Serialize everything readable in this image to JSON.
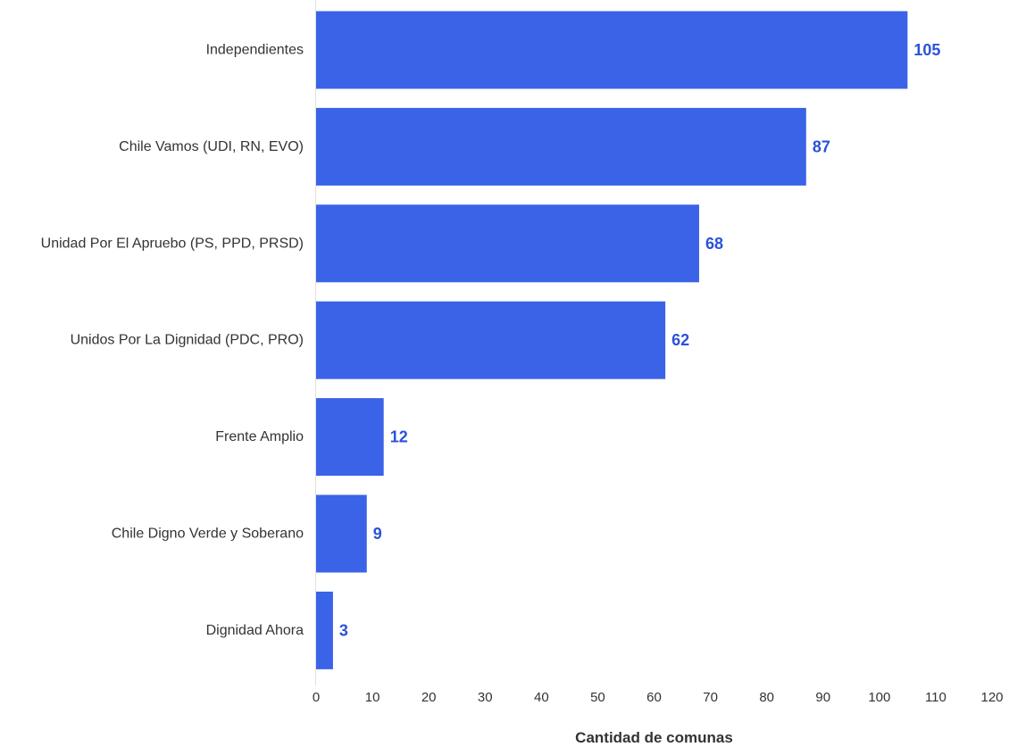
{
  "chart_data": {
    "type": "bar",
    "orientation": "horizontal",
    "categories": [
      "Independientes",
      "Chile Vamos (UDI, RN, EVO)",
      "Unidad Por El Apruebo (PS, PPD, PRSD)",
      "Unidos Por La Dignidad (PDC, PRO)",
      "Frente Amplio",
      "Chile Digno Verde y Soberano",
      "Dignidad Ahora"
    ],
    "values": [
      105,
      87,
      68,
      62,
      12,
      9,
      3
    ],
    "data_labels": [
      "105",
      "87",
      "68",
      "62",
      "12",
      "9",
      "3"
    ],
    "xlabel": "Cantidad de comunas",
    "ylabel": "",
    "xlim": [
      0,
      120
    ],
    "xticks": [
      0,
      10,
      20,
      30,
      40,
      50,
      60,
      70,
      80,
      90,
      100,
      110,
      120
    ],
    "grid": false,
    "legend": "none"
  },
  "colors": {
    "bar": "#3a63e8",
    "data_label": "#2a52d9",
    "axis": "#333333"
  }
}
